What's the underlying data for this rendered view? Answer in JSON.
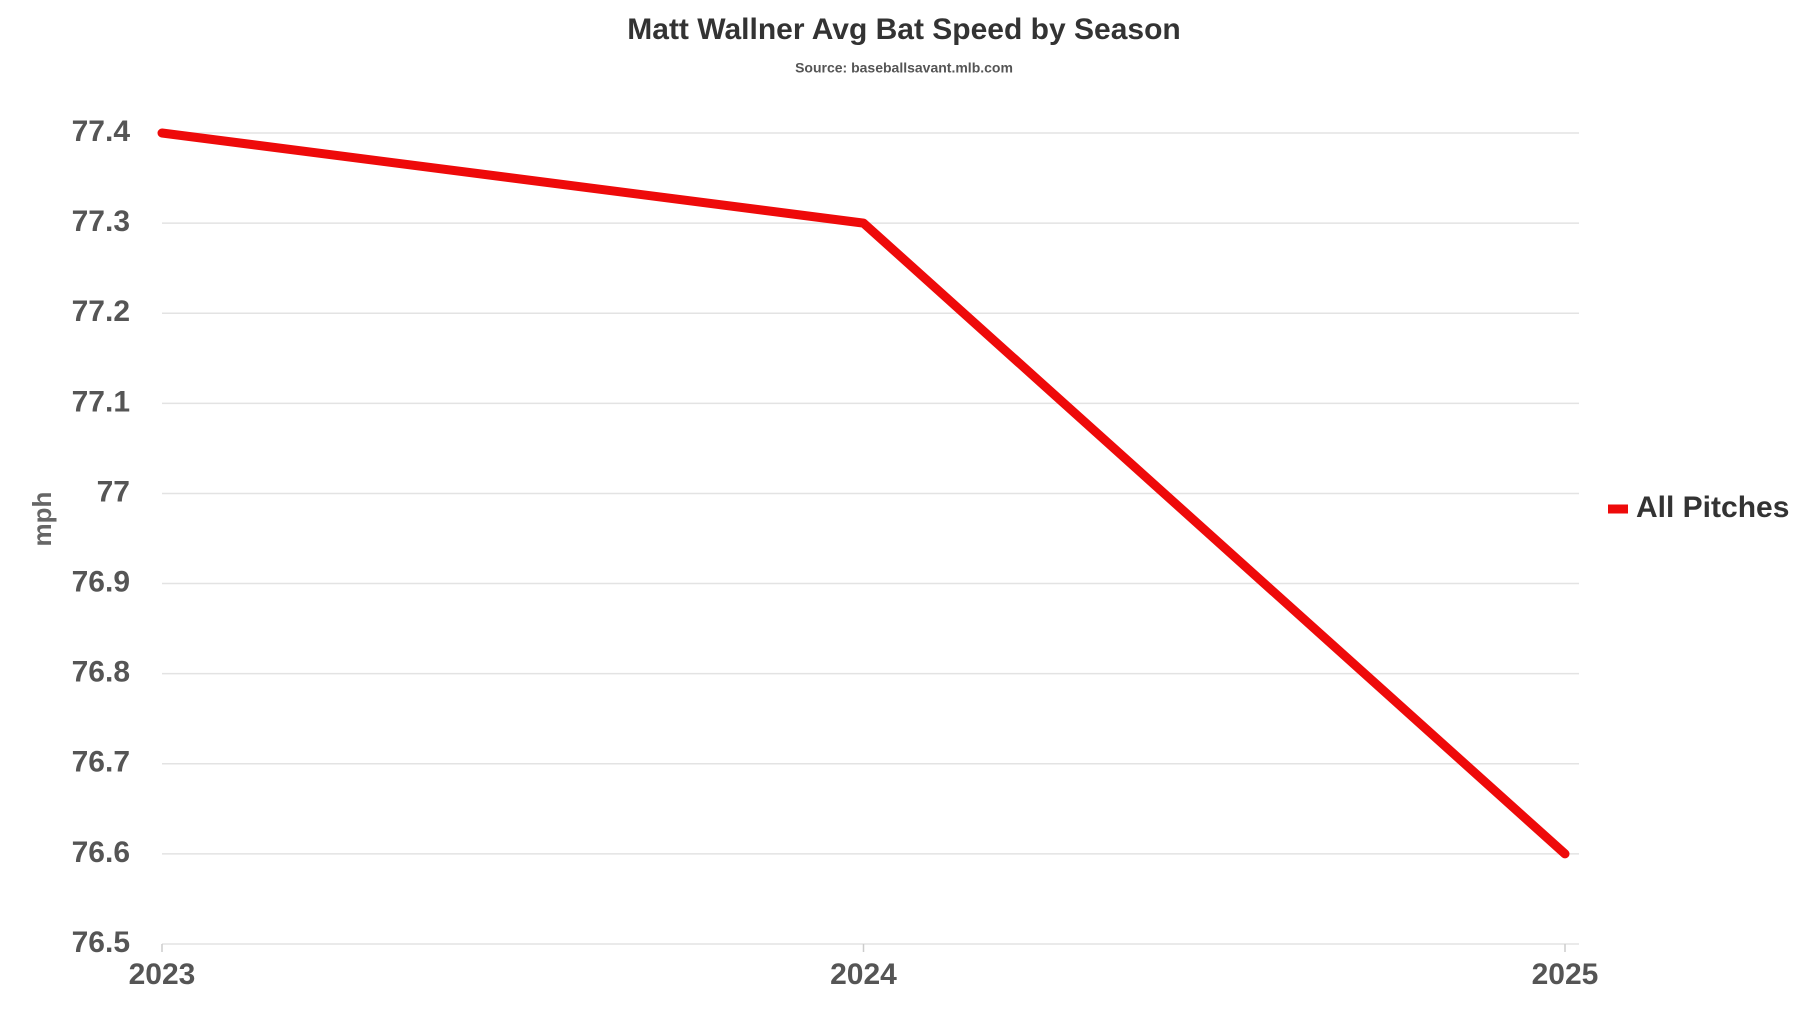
{
  "chart_data": {
    "type": "line",
    "title": "Matt Wallner Avg Bat Speed by Season",
    "subtitle": "Source: baseballsavant.mlb.com",
    "y_label": "mph",
    "categories": [
      "2023",
      "2024",
      "2025"
    ],
    "series": [
      {
        "name": "All Pitches",
        "color": "#ee0a0a",
        "values": [
          77.4,
          77.3,
          76.6
        ]
      }
    ],
    "ylim": [
      76.5,
      77.4
    ],
    "yticks": [
      76.5,
      76.6,
      76.7,
      76.8,
      76.9,
      77,
      77.1,
      77.2,
      77.3,
      77.4
    ],
    "grid": true,
    "legend": "right"
  }
}
